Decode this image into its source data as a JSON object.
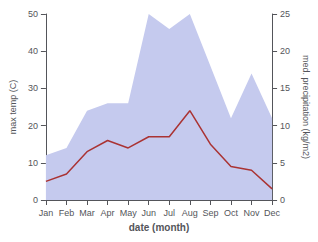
{
  "chart_data": {
    "type": "line",
    "categories": [
      "Jan",
      "Feb",
      "Mar",
      "Apr",
      "May",
      "Jun",
      "Jul",
      "Aug",
      "Sep",
      "Oct",
      "Nov",
      "Dec"
    ],
    "xlabel": "date (month)",
    "ylabel": "max temp (C)",
    "y2label": "med. precipitation (kg/m2)",
    "ylim": [
      0,
      50
    ],
    "yticks": [
      0,
      10,
      20,
      30,
      40,
      50
    ],
    "y2lim": [
      0,
      25
    ],
    "y2ticks": [
      0,
      5,
      10,
      15,
      20,
      25
    ],
    "grid": false,
    "series": [
      {
        "type": "area",
        "color": "#c5caee",
        "axis": "y2",
        "values": [
          6,
          7,
          12,
          13,
          13,
          25,
          23,
          25,
          18,
          11,
          17,
          11
        ]
      },
      {
        "type": "line",
        "color": "#aa3333",
        "values": [
          5,
          7,
          13,
          16,
          14,
          17,
          17,
          24,
          15,
          9,
          8,
          3
        ]
      }
    ]
  }
}
